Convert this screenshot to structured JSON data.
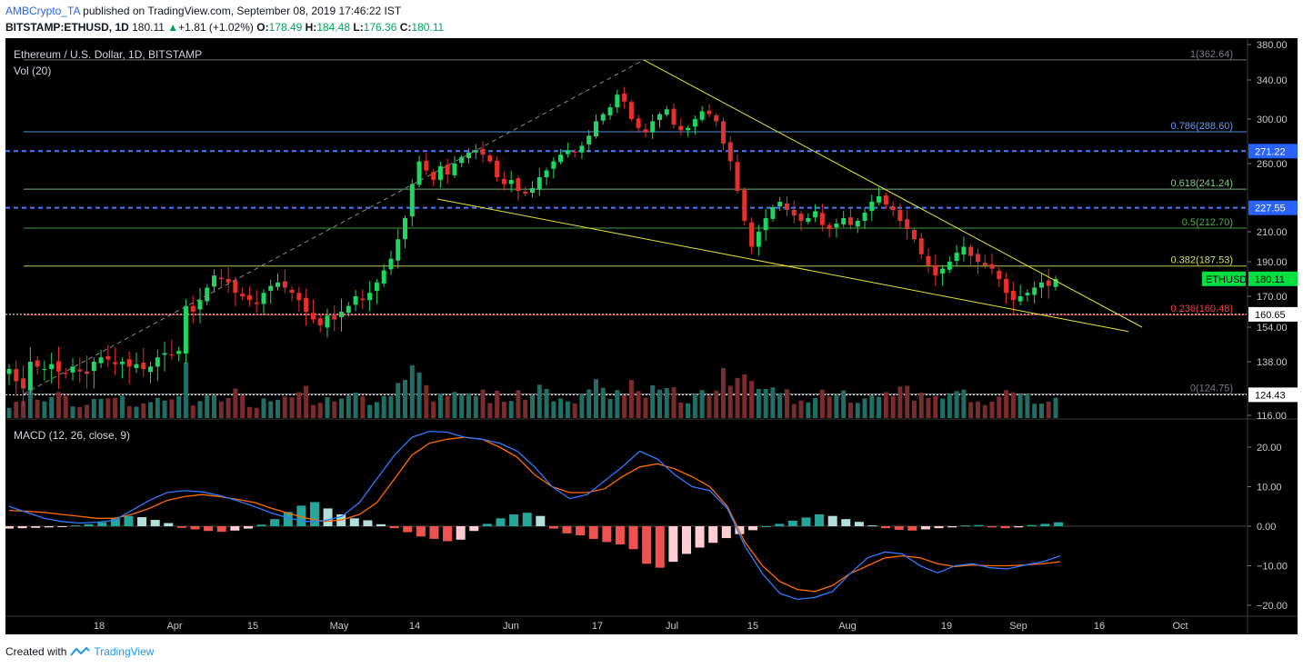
{
  "header": {
    "author": "AMBCrypto_TA",
    "published_text": "published on TradingView.com, September 08, 2019 17:46:22 IST",
    "symbol": "BITSTAMP:ETHUSD, 1D",
    "last": "180.11",
    "change": "+1.81 (+1.02%)",
    "o_label": "O:",
    "o_value": "178.49",
    "h_label": "H:",
    "h_value": "184.48",
    "l_label": "L:",
    "l_value": "176.36",
    "c_label": "C:",
    "c_value": "180.11"
  },
  "chart_title": "Ethereum / U.S. Dollar, 1D, BITSTAMP",
  "volume_label": "Vol (20)",
  "macd_label": "MACD (12, 26, close, 9)",
  "footer": {
    "created_with": "Created with",
    "brand": "TradingView"
  },
  "colors": {
    "background": "#000000",
    "up": "#26a69a",
    "down": "#ef5350",
    "up_candle": "#1ed760",
    "down_candle": "#e8302a",
    "trendline": "#e9e335",
    "dashed_level": "#4a7cff",
    "macd_line": "#2f7bff",
    "signal_line": "#ff6d00",
    "axis_text": "#c8c8c8",
    "price_tag": "#00e040"
  },
  "chart_data": [
    {
      "type": "candlestick",
      "title": "Ethereum / U.S. Dollar, 1D, BITSTAMP",
      "y_axis_ticks": [
        380,
        340,
        300,
        260,
        210,
        190,
        170,
        154,
        138,
        116
      ],
      "y_axis_tick_labels": [
        "380.00",
        "340.00",
        "300.00",
        "260.00",
        "210.00",
        "190.00",
        "170.00",
        "154.00",
        "138.00",
        "116.00"
      ],
      "ylim": [
        116,
        380
      ],
      "x_axis_ticks": [
        "18",
        "Apr",
        "15",
        "May",
        "14",
        "Jun",
        "17",
        "Jul",
        "15",
        "Aug",
        "19",
        "Sep",
        "16",
        "Oct"
      ],
      "last_price_tag": {
        "label": "ETHUSD",
        "value": "180.11"
      },
      "horizontal_levels": [
        {
          "value": 271.22,
          "label": "271.22",
          "style": "dashed-blue"
        },
        {
          "value": 227.55,
          "label": "227.55",
          "style": "dashed-blue"
        },
        {
          "value": 160.65,
          "label": "160.65",
          "style": "dotted-white"
        },
        {
          "value": 124.43,
          "label": "124.43",
          "style": "dotted-white"
        }
      ],
      "fib_levels": [
        {
          "ratio": "1",
          "price": 362.64,
          "label": "1(362.64)",
          "color": "#787b86"
        },
        {
          "ratio": "0.786",
          "price": 288.6,
          "label": "0.786(288.60)",
          "color": "#5b9cf6"
        },
        {
          "ratio": "0.618",
          "price": 241.24,
          "label": "0.618(241.24)",
          "color": "#81c784"
        },
        {
          "ratio": "0.5",
          "price": 212.7,
          "label": "0.5(212.70)",
          "color": "#4caf50"
        },
        {
          "ratio": "0.382",
          "price": 187.53,
          "label": "0.382(187.53)",
          "color": "#d4e157"
        },
        {
          "ratio": "0.236",
          "price": 160.48,
          "label": "0.236(160.48)",
          "color": "#f44336"
        },
        {
          "ratio": "0",
          "price": 124.75,
          "label": "0(124.75)",
          "color": "#787b86"
        }
      ],
      "closes": [
        135,
        130,
        127,
        138,
        136,
        135,
        137,
        134,
        133,
        136,
        134,
        133,
        138,
        140,
        139,
        137,
        138,
        136,
        137,
        135,
        136,
        140,
        142,
        141,
        143,
        165,
        162,
        168,
        175,
        182,
        180,
        178,
        172,
        170,
        168,
        166,
        172,
        176,
        178,
        175,
        172,
        168,
        162,
        158,
        155,
        160,
        158,
        162,
        165,
        170,
        168,
        172,
        178,
        185,
        192,
        205,
        220,
        245,
        262,
        255,
        248,
        258,
        252,
        260,
        266,
        270,
        272,
        268,
        262,
        250,
        245,
        248,
        240,
        238,
        242,
        250,
        255,
        262,
        268,
        272,
        270,
        276,
        285,
        298,
        305,
        312,
        325,
        318,
        300,
        292,
        288,
        298,
        305,
        310,
        295,
        290,
        292,
        300,
        308,
        305,
        298,
        278,
        262,
        240,
        218,
        200,
        210,
        220,
        228,
        232,
        226,
        222,
        218,
        220,
        225,
        215,
        212,
        216,
        220,
        215,
        218,
        224,
        232,
        236,
        230,
        226,
        218,
        212,
        205,
        195,
        188,
        182,
        186,
        190,
        196,
        200,
        194,
        190,
        188,
        186,
        180,
        172,
        168,
        170,
        172,
        175,
        178,
        176,
        180
      ],
      "volume_note": "bars colored by candle direction"
    },
    {
      "type": "line",
      "title": "MACD (12, 26, close, 9)",
      "y_axis_ticks": [
        20,
        10,
        0,
        -10,
        -20
      ],
      "y_axis_tick_labels": [
        "20.00",
        "10.00",
        "0.00",
        "−10.00",
        "−20.00"
      ],
      "ylim": [
        -20,
        25
      ],
      "series": [
        {
          "name": "MACD",
          "values": [
            5,
            3.5,
            2,
            1.2,
            0.8,
            1,
            1.5,
            4,
            6.5,
            8.5,
            9,
            8.7,
            7.8,
            6.5,
            5,
            3.3,
            2,
            1.2,
            1.4,
            2.5,
            6,
            12,
            18,
            22.5,
            24,
            23.8,
            22.5,
            22,
            21,
            19,
            15,
            10,
            7,
            8,
            11.5,
            15,
            19,
            17,
            13,
            10,
            9,
            4.5,
            -5,
            -12,
            -17,
            -18.5,
            -18,
            -16.5,
            -12,
            -8,
            -6.5,
            -7,
            -10,
            -11.8,
            -10,
            -9.5,
            -10.5,
            -10.8,
            -9.8,
            -9,
            -7.5
          ]
        },
        {
          "name": "Signal",
          "values": [
            4,
            3.8,
            3.5,
            3,
            2.5,
            2,
            2,
            3,
            4.5,
            6.5,
            7.5,
            8,
            7.5,
            6.8,
            6,
            4.5,
            3.2,
            2,
            1.2,
            1.6,
            3,
            6,
            12,
            18,
            21,
            22,
            22.5,
            22,
            20,
            17.5,
            13,
            10,
            8.5,
            8.5,
            9.5,
            12.5,
            15,
            15.8,
            14.5,
            12.5,
            10,
            5,
            -4,
            -10,
            -14,
            -16,
            -16.5,
            -15,
            -12,
            -10,
            -8,
            -7.5,
            -8,
            -9.5,
            -10.2,
            -9.8,
            -10,
            -10,
            -9.8,
            -9.5,
            -9
          ]
        },
        {
          "name": "Histogram",
          "values": [
            -0.6,
            -0.5,
            -0.4,
            -0.3,
            -0.2,
            0.2,
            0.5,
            1,
            2,
            2.6,
            2.3,
            1.6,
            0.8,
            -0.4,
            -0.8,
            -1.2,
            -1.4,
            -1.1,
            -0.6,
            0.4,
            1.8,
            3.6,
            5.2,
            6.1,
            4.5,
            3,
            2,
            1.5,
            0.5,
            -0.5,
            -1.5,
            -2.6,
            -3.2,
            -3.8,
            -3.4,
            -1.2,
            0.6,
            2,
            3,
            3.4,
            2.6,
            -0.6,
            -1.8,
            -2.3,
            -3.2,
            -4,
            -4.6,
            -5.8,
            -9.5,
            -10.5,
            -9,
            -7,
            -5.4,
            -4.2,
            -3,
            -2,
            -1,
            0,
            0.6,
            1.4,
            2.2,
            3,
            2.6,
            1.8,
            1.1,
            0.2,
            -0.5,
            -0.9,
            -1.1,
            -0.8,
            -0.5,
            -0.3,
            0.2,
            0.3,
            -0.3,
            -0.5,
            -0.3,
            0.3,
            0.6,
            1
          ]
        }
      ]
    }
  ]
}
